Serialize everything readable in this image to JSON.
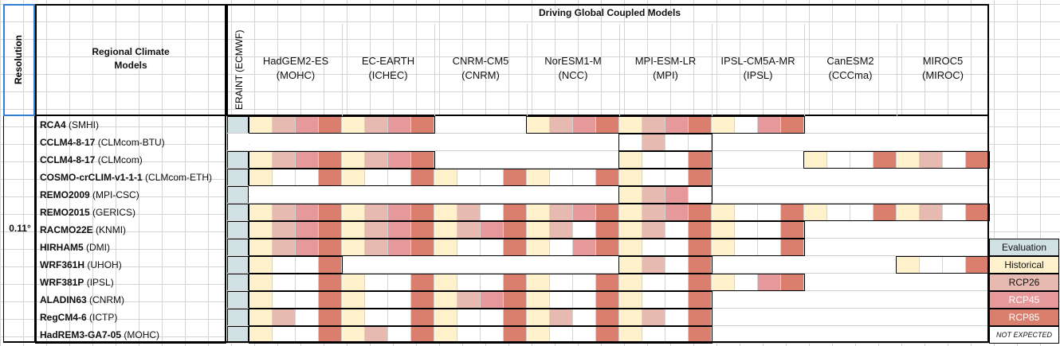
{
  "colors": {
    "evaluation": "#d1e0e3",
    "historical": "#fff1cc",
    "rcp26": "#e6bab1",
    "rcp45": "#e5999a",
    "rcp85": "#da7f6d",
    "not_expected": "#ffffff"
  },
  "header": {
    "resolution_label": "Resolution",
    "rcm_header": "Regional Climate Models",
    "gcm_header": "Driving Global Coupled Models",
    "eraint_label": "ERAINT (ECMWF)",
    "resolution_value": "0.11°"
  },
  "gcms": [
    {
      "name": "HadGEM2-ES",
      "institute": "(MOHC)"
    },
    {
      "name": "EC-EARTH",
      "institute": "(ICHEC)"
    },
    {
      "name": "CNRM-CM5",
      "institute": "(CNRM)"
    },
    {
      "name": "NorESM1-M",
      "institute": "(NCC)"
    },
    {
      "name": "MPI-ESM-LR",
      "institute": "(MPI)"
    },
    {
      "name": "IPSL-CM5A-MR",
      "institute": "(IPSL)"
    },
    {
      "name": "CanESM2",
      "institute": "(CCCma)"
    },
    {
      "name": "MIROC5",
      "institute": "(MIROC)"
    }
  ],
  "rcms": [
    {
      "name": "RCA4",
      "institute": "(SMHI)",
      "eval": true,
      "cells": [
        "HRMX",
        "HRMX",
        "",
        "HRMX",
        "HRMX",
        "H.MX",
        "",
        ""
      ]
    },
    {
      "name": "CCLM4-8-17",
      "institute": "(CLMcom-BTU)",
      "eval": false,
      "cells": [
        "",
        "",
        "",
        "",
        ".R..",
        "",
        "",
        ""
      ]
    },
    {
      "name": "CCLM4-8-17",
      "institute": "(CLMcom)",
      "eval": true,
      "cells": [
        "HRMX",
        "HRMX",
        "",
        "",
        "H..X",
        "",
        "H..X",
        "HR.X"
      ]
    },
    {
      "name": "COSMO-crCLIM-v1-1-1",
      "institute": "(CLMcom-ETH)",
      "eval": true,
      "cells": [
        "H..X",
        "H..X",
        "H..X",
        "H..X",
        "H..X",
        "",
        "",
        ""
      ]
    },
    {
      "name": "REMO2009",
      "institute": "(MPI-CSC)",
      "eval": true,
      "cells": [
        "",
        "",
        "",
        "",
        "HRM.",
        "",
        "",
        ""
      ]
    },
    {
      "name": "REMO2015",
      "institute": "(GERICS)",
      "eval": true,
      "cells": [
        "HRMX",
        "HRMX",
        "HR.X",
        "HRMX",
        "HRMX",
        "H..X",
        "H..X",
        "HR.X"
      ]
    },
    {
      "name": "RACMO22E",
      "institute": "(KNMI)",
      "eval": true,
      "cells": [
        "HRMX",
        "HRMX",
        "HRMX",
        "HR.X",
        "HR.X",
        "H..X",
        "",
        ""
      ]
    },
    {
      "name": "HIRHAM5",
      "institute": "(DMI)",
      "eval": true,
      "cells": [
        "HRMX",
        "HRMX",
        "H..X",
        "H.MX",
        "H..X",
        "H..X",
        "",
        ""
      ]
    },
    {
      "name": "WRF361H",
      "institute": "(UHOH)",
      "eval": true,
      "cells": [
        "H..X",
        "",
        "",
        "",
        "HR.X",
        "",
        "",
        "H..X"
      ]
    },
    {
      "name": "WRF381P",
      "institute": "(IPSL)",
      "eval": true,
      "cells": [
        "H..X",
        "H..X",
        "H..X",
        "H..X",
        "H..X",
        "H.MX",
        "",
        ""
      ]
    },
    {
      "name": "ALADIN63",
      "institute": "(CNRM)",
      "eval": true,
      "cells": [
        "H..X",
        "H..X",
        "HRMX",
        "H..X",
        "H..X",
        "",
        "",
        ""
      ]
    },
    {
      "name": "RegCM4-6",
      "institute": "(ICTP)",
      "eval": true,
      "cells": [
        "HR.X",
        "H..X",
        "H..X",
        "HR.X",
        "HR.X",
        "",
        "",
        ""
      ]
    },
    {
      "name": "HadREM3-GA7-05",
      "institute": "(MOHC)",
      "eval": true,
      "cells": [
        "H..X",
        "HR.X",
        "H..X",
        "H..X",
        "H..X",
        "",
        "",
        ""
      ]
    }
  ],
  "legend": [
    {
      "key": "evaluation",
      "label": "Evaluation"
    },
    {
      "key": "historical",
      "label": "Historical"
    },
    {
      "key": "rcp26",
      "label": "RCP26"
    },
    {
      "key": "rcp45",
      "label": "RCP45"
    },
    {
      "key": "rcp85",
      "label": "RCP85"
    },
    {
      "key": "not_expected",
      "label": "NOT EXPECTED"
    }
  ]
}
